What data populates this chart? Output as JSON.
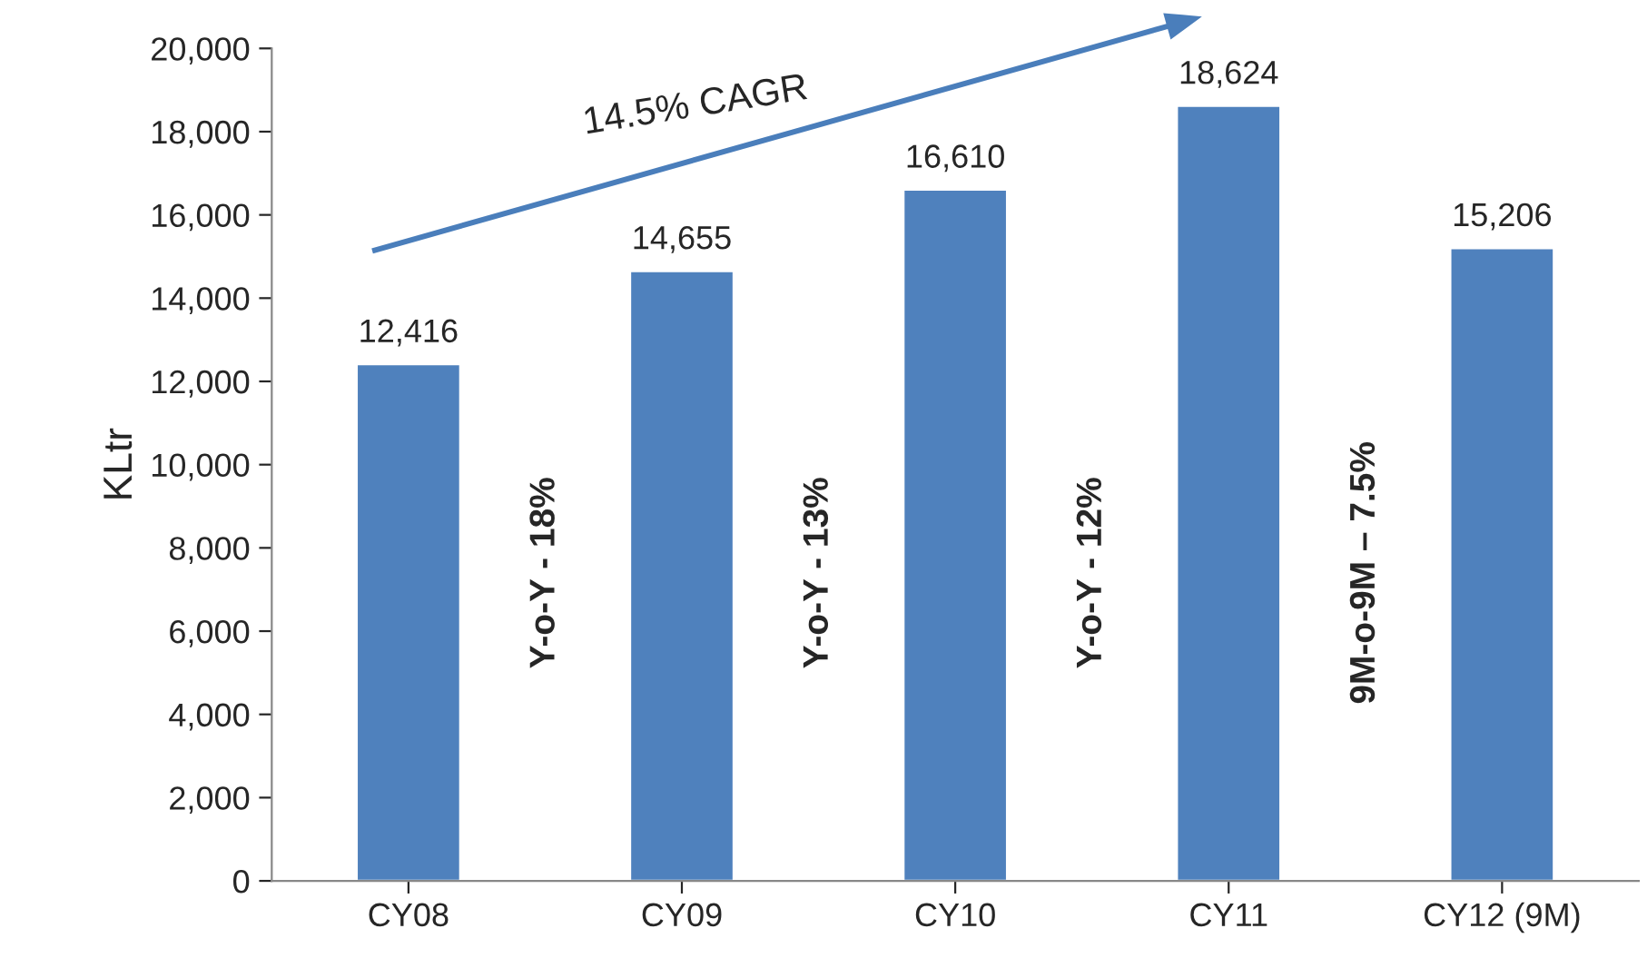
{
  "chart_data": {
    "type": "bar",
    "ylabel": "KLtr",
    "categories": [
      "CY08",
      "CY09",
      "CY10",
      "CY11",
      "CY12 (9M)"
    ],
    "values": [
      12416,
      14655,
      16610,
      18624,
      15206
    ],
    "value_labels": [
      "12,416",
      "14,655",
      "16,610",
      "18,624",
      "15,206"
    ],
    "color": "#4f81bd",
    "ylim": [
      0,
      20000
    ],
    "yticks": [
      0,
      {
        "value": 2000,
        "label": "2,000"
      },
      {
        "value": 4000,
        "label": "4,000"
      },
      {
        "value": 6000,
        "label": "6,000"
      },
      {
        "value": 8000,
        "label": "8,000"
      },
      {
        "value": 10000,
        "label": "10,000"
      },
      {
        "value": 12000,
        "label": "12,000"
      },
      {
        "value": 14000,
        "label": "14,000"
      },
      {
        "value": 16000,
        "label": "16,000"
      },
      {
        "value": 18000,
        "label": "18,000"
      },
      {
        "value": 20000,
        "label": "20,000"
      }
    ],
    "grid": false,
    "legend": false,
    "annotations": [
      "14.5% CAGR",
      "Y-o-Y - 18%",
      "Y-o-Y - 13%",
      "Y-o-Y - 12%",
      "9M-o-9M – 7.5%"
    ]
  }
}
